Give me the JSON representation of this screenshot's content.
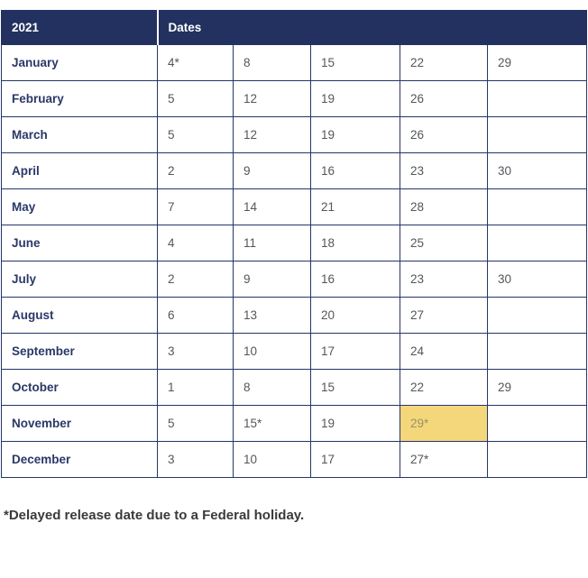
{
  "table": {
    "header": {
      "year": "2021",
      "dates_label": "Dates"
    },
    "rows": [
      {
        "month": "January",
        "dates": [
          "4*",
          "8",
          "15",
          "22",
          "29"
        ]
      },
      {
        "month": "February",
        "dates": [
          "5",
          "12",
          "19",
          "26",
          ""
        ]
      },
      {
        "month": "March",
        "dates": [
          "5",
          "12",
          "19",
          "26",
          ""
        ]
      },
      {
        "month": "April",
        "dates": [
          "2",
          "9",
          "16",
          "23",
          "30"
        ]
      },
      {
        "month": "May",
        "dates": [
          "7",
          "14",
          "21",
          "28",
          ""
        ]
      },
      {
        "month": "June",
        "dates": [
          "4",
          "11",
          "18",
          "25",
          ""
        ]
      },
      {
        "month": "July",
        "dates": [
          "2",
          "9",
          "16",
          "23",
          "30"
        ]
      },
      {
        "month": "August",
        "dates": [
          "6",
          "13",
          "20",
          "27",
          ""
        ]
      },
      {
        "month": "September",
        "dates": [
          "3",
          "10",
          "17",
          "24",
          ""
        ]
      },
      {
        "month": "October",
        "dates": [
          "1",
          "8",
          "15",
          "22",
          "29"
        ]
      },
      {
        "month": "November",
        "dates": [
          "5",
          "15*",
          "19",
          "29*",
          ""
        ]
      },
      {
        "month": "December",
        "dates": [
          "3",
          "10",
          "17",
          "27*",
          ""
        ]
      }
    ],
    "highlight": {
      "month": "November",
      "date_index": 3,
      "value": "29*",
      "color": "#F5D77B"
    }
  },
  "footnote": "*Delayed release date due to a Federal holiday.",
  "colors": {
    "header_bg": "#22315F",
    "border": "#26356A",
    "date_text": "#54565B",
    "highlight": "#F5D77B",
    "footnote_text": "#3A3A3A"
  }
}
